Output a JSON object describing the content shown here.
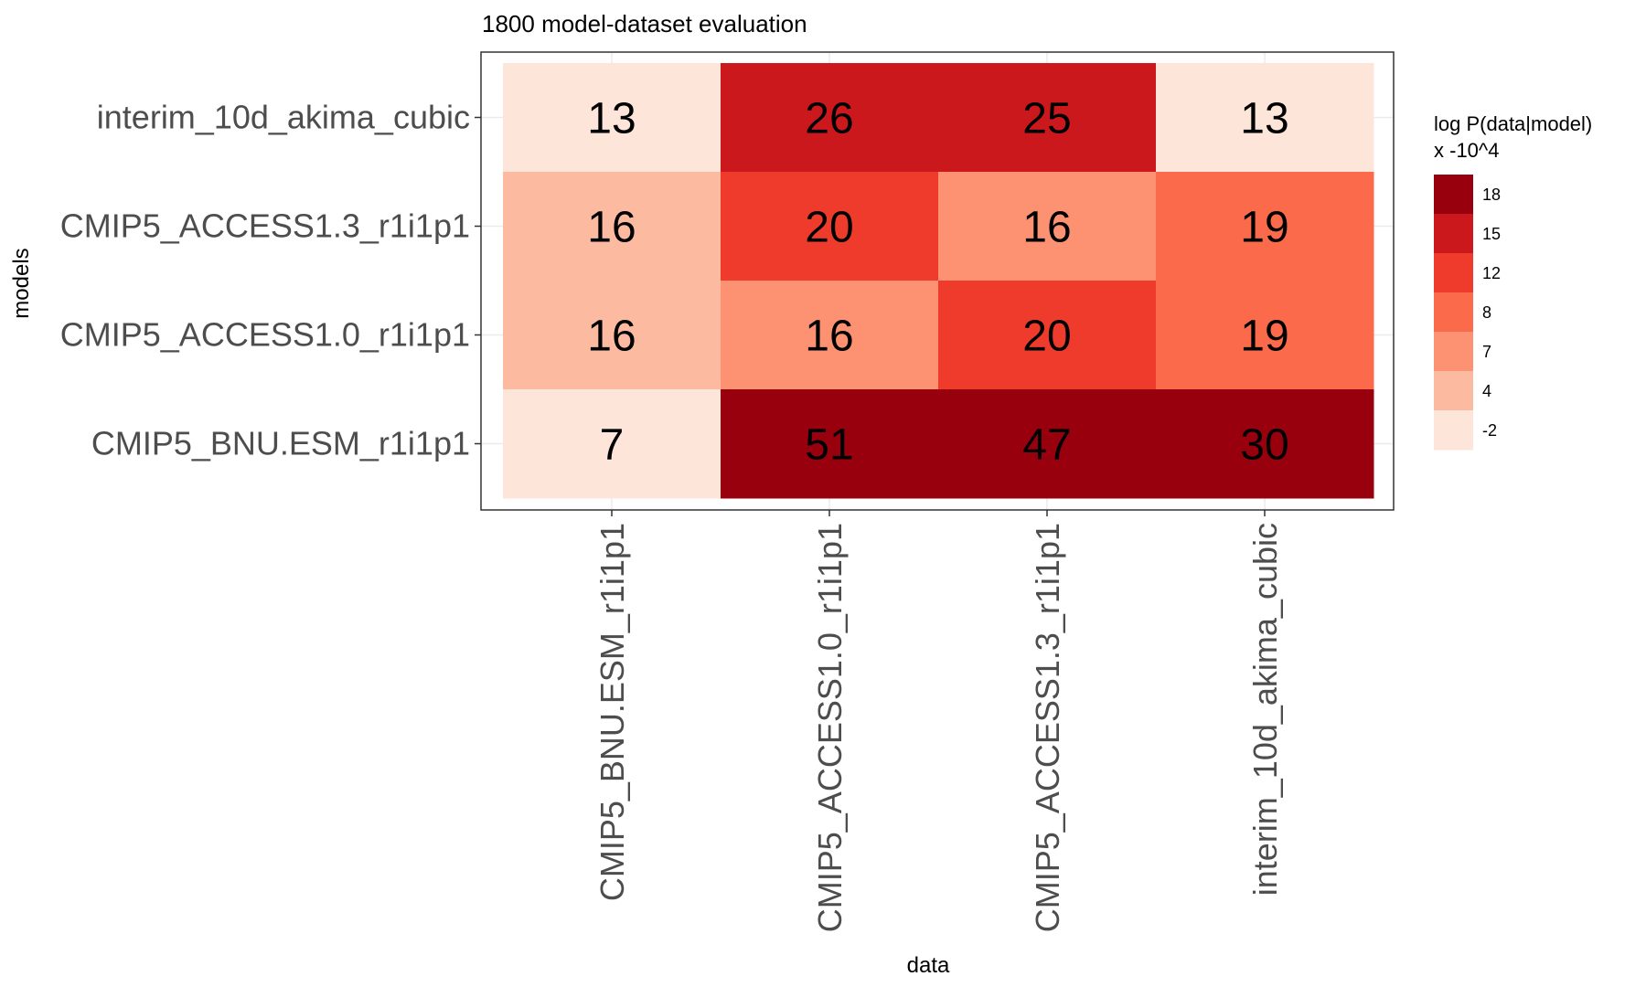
{
  "chart_data": {
    "type": "heatmap",
    "title": "1800 model-dataset evaluation",
    "xlabel": "data",
    "ylabel": "models",
    "x_categories": [
      "CMIP5_BNU.ESM_r1i1p1",
      "CMIP5_ACCESS1.0_r1i1p1",
      "CMIP5_ACCESS1.3_r1i1p1",
      "interim_10d_akima_cubic"
    ],
    "y_categories": [
      "interim_10d_akima_cubic",
      "CMIP5_ACCESS1.3_r1i1p1",
      "CMIP5_ACCESS1.0_r1i1p1",
      "CMIP5_BNU.ESM_r1i1p1"
    ],
    "values": [
      [
        13,
        26,
        25,
        13
      ],
      [
        16,
        20,
        16,
        19
      ],
      [
        16,
        16,
        20,
        19
      ],
      [
        7,
        51,
        47,
        30
      ]
    ],
    "legend": {
      "title_line1": "log P(data|model)",
      "title_line2": "x -10^4",
      "position": "right",
      "bins": [
        {
          "label": "18",
          "color": "#99000d"
        },
        {
          "label": "15",
          "color": "#cb181d"
        },
        {
          "label": "12",
          "color": "#ef3b2c"
        },
        {
          "label": "8",
          "color": "#fb6a4a"
        },
        {
          "label": "7",
          "color": "#fc9272"
        },
        {
          "label": "4",
          "color": "#fcbba1"
        },
        {
          "label": "-2",
          "color": "#fee5d9"
        }
      ]
    },
    "grid": true
  }
}
